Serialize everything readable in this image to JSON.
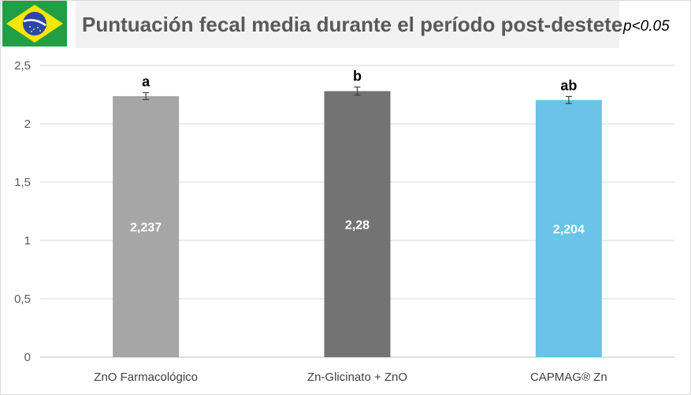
{
  "header": {
    "title": "Puntuación fecal media durante el período post-destete",
    "pvalue": "p<0.05",
    "flag_icon": "brazil-flag-icon"
  },
  "chart_data": {
    "type": "bar",
    "categories": [
      "ZnO Farmacológico",
      "Zn-Glicinato + ZnO",
      "CAPMAG® Zn"
    ],
    "values": [
      2.237,
      2.28,
      2.204
    ],
    "value_labels": [
      "2,237",
      "2,28",
      "2,204"
    ],
    "significance": [
      "a",
      "b",
      "ab"
    ],
    "errors": [
      0.03,
      0.035,
      0.03
    ],
    "colors": [
      "#a6a6a6",
      "#737373",
      "#6ac3e8"
    ],
    "yticks": [
      "0",
      "0,5",
      "1",
      "1,5",
      "2",
      "2,5"
    ],
    "ylim": [
      0,
      2.5
    ],
    "grid": true
  }
}
